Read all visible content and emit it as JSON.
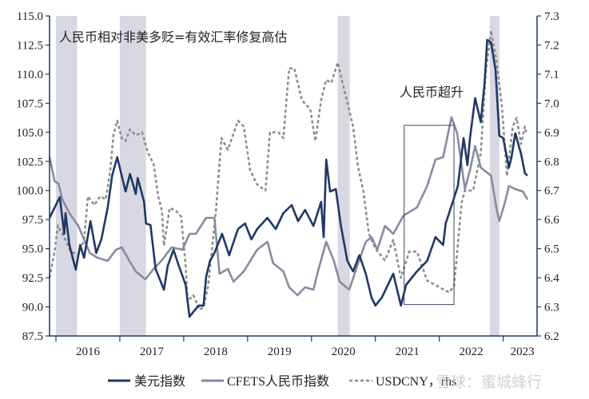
{
  "chart_data": {
    "type": "line",
    "title": "",
    "annotation_top": "人民币相对非美多贬=有效汇率修复高估",
    "annotation_box_label": "人民币超升",
    "annotation_box": {
      "x_range": [
        2021.45,
        2022.23
      ],
      "y_range": [
        90.2,
        105.6
      ]
    },
    "x_ticks": [
      "2016",
      "2017",
      "2018",
      "2019",
      "2020",
      "2021",
      "2022",
      "2023"
    ],
    "x_range": [
      2015.9,
      2023.53
    ],
    "y_left": {
      "ticks": [
        "87.5",
        "90.0",
        "92.5",
        "95.0",
        "97.5",
        "100.0",
        "102.5",
        "105.0",
        "107.5",
        "110.0",
        "112.5",
        "115.0"
      ],
      "range": [
        87.5,
        115.0
      ]
    },
    "y_right": {
      "ticks": [
        "6.2",
        "6.3",
        "6.4",
        "6.5",
        "6.6",
        "6.7",
        "6.8",
        "6.9",
        "7.0",
        "7.1",
        "7.2",
        "7.3"
      ],
      "range": [
        6.2,
        7.3
      ]
    },
    "shaded_periods": [
      [
        2016.0,
        2016.33
      ],
      [
        2017.0,
        2017.41
      ],
      [
        2020.41,
        2020.6
      ],
      [
        2022.79,
        2022.94
      ]
    ],
    "grid": false,
    "legend_position": "bottom",
    "series": [
      {
        "name": "美元指数",
        "axis": "left",
        "color": "#1f3864",
        "style": "solid",
        "points": [
          [
            2015.9,
            97.65
          ],
          [
            2016.06,
            99.43
          ],
          [
            2016.13,
            96.28
          ],
          [
            2016.15,
            98.06
          ],
          [
            2016.21,
            95.32
          ],
          [
            2016.31,
            93.19
          ],
          [
            2016.38,
            95.32
          ],
          [
            2016.44,
            94.22
          ],
          [
            2016.54,
            97.37
          ],
          [
            2016.63,
            94.63
          ],
          [
            2016.71,
            95.8
          ],
          [
            2016.81,
            98.54
          ],
          [
            2016.88,
            101.28
          ],
          [
            2016.96,
            102.86
          ],
          [
            2017.09,
            99.91
          ],
          [
            2017.16,
            101.42
          ],
          [
            2017.25,
            99.71
          ],
          [
            2017.28,
            101.08
          ],
          [
            2017.38,
            99.02
          ],
          [
            2017.41,
            97.17
          ],
          [
            2017.48,
            97.03
          ],
          [
            2017.56,
            93.26
          ],
          [
            2017.69,
            91.48
          ],
          [
            2017.75,
            93.53
          ],
          [
            2017.84,
            94.91
          ],
          [
            2017.91,
            93.74
          ],
          [
            2018.03,
            91.89
          ],
          [
            2018.09,
            89.15
          ],
          [
            2018.23,
            90.11
          ],
          [
            2018.31,
            90.11
          ],
          [
            2018.35,
            92.57
          ],
          [
            2018.41,
            93.95
          ],
          [
            2018.48,
            94.63
          ],
          [
            2018.6,
            96.28
          ],
          [
            2018.71,
            94.43
          ],
          [
            2018.85,
            96.69
          ],
          [
            2018.96,
            97.17
          ],
          [
            2019.06,
            95.8
          ],
          [
            2019.15,
            96.69
          ],
          [
            2019.31,
            97.65
          ],
          [
            2019.44,
            96.69
          ],
          [
            2019.56,
            98.06
          ],
          [
            2019.69,
            98.75
          ],
          [
            2019.79,
            97.37
          ],
          [
            2019.9,
            98.33
          ],
          [
            2020.03,
            96.96
          ],
          [
            2020.15,
            99.02
          ],
          [
            2020.19,
            96.0
          ],
          [
            2020.23,
            102.66
          ],
          [
            2020.29,
            99.91
          ],
          [
            2020.38,
            100.12
          ],
          [
            2020.46,
            96.96
          ],
          [
            2020.56,
            93.95
          ],
          [
            2020.65,
            93.05
          ],
          [
            2020.75,
            94.43
          ],
          [
            2020.85,
            92.85
          ],
          [
            2020.94,
            90.79
          ],
          [
            2021.0,
            90.11
          ],
          [
            2021.1,
            90.79
          ],
          [
            2021.28,
            92.85
          ],
          [
            2021.4,
            90.11
          ],
          [
            2021.48,
            91.89
          ],
          [
            2021.65,
            93.05
          ],
          [
            2021.81,
            93.95
          ],
          [
            2021.94,
            96.0
          ],
          [
            2022.06,
            95.32
          ],
          [
            2022.1,
            97.17
          ],
          [
            2022.21,
            99.02
          ],
          [
            2022.29,
            100.39
          ],
          [
            2022.38,
            104.51
          ],
          [
            2022.44,
            102.18
          ],
          [
            2022.48,
            104.51
          ],
          [
            2022.56,
            107.94
          ],
          [
            2022.65,
            105.88
          ],
          [
            2022.71,
            109.31
          ],
          [
            2022.75,
            112.94
          ],
          [
            2022.81,
            112.74
          ],
          [
            2022.88,
            110.41
          ],
          [
            2022.94,
            104.71
          ],
          [
            2023.0,
            104.51
          ],
          [
            2023.09,
            101.97
          ],
          [
            2023.13,
            102.86
          ],
          [
            2023.19,
            104.92
          ],
          [
            2023.28,
            103.14
          ],
          [
            2023.34,
            101.49
          ],
          [
            2023.38,
            101.28
          ]
        ]
      },
      {
        "name": "CFETS人民币指数",
        "axis": "left",
        "color": "#8b8aa0",
        "style": "solid",
        "points": [
          [
            2015.9,
            102.86
          ],
          [
            2015.98,
            100.8
          ],
          [
            2016.04,
            100.6
          ],
          [
            2016.1,
            99.23
          ],
          [
            2016.21,
            98.06
          ],
          [
            2016.35,
            96.96
          ],
          [
            2016.44,
            95.8
          ],
          [
            2016.53,
            94.63
          ],
          [
            2016.65,
            94.22
          ],
          [
            2016.81,
            93.95
          ],
          [
            2016.94,
            94.91
          ],
          [
            2017.03,
            95.11
          ],
          [
            2017.15,
            93.95
          ],
          [
            2017.25,
            93.05
          ],
          [
            2017.4,
            92.37
          ],
          [
            2017.53,
            93.26
          ],
          [
            2017.65,
            93.95
          ],
          [
            2017.81,
            95.11
          ],
          [
            2017.98,
            94.91
          ],
          [
            2018.09,
            96.28
          ],
          [
            2018.19,
            96.28
          ],
          [
            2018.35,
            97.65
          ],
          [
            2018.48,
            97.65
          ],
          [
            2018.56,
            92.85
          ],
          [
            2018.69,
            93.26
          ],
          [
            2018.78,
            92.16
          ],
          [
            2018.94,
            93.05
          ],
          [
            2019.15,
            94.91
          ],
          [
            2019.31,
            95.59
          ],
          [
            2019.4,
            93.74
          ],
          [
            2019.56,
            93.05
          ],
          [
            2019.65,
            91.68
          ],
          [
            2019.78,
            91.0
          ],
          [
            2019.9,
            91.68
          ],
          [
            2020.03,
            91.48
          ],
          [
            2020.1,
            93.05
          ],
          [
            2020.23,
            95.59
          ],
          [
            2020.35,
            93.95
          ],
          [
            2020.44,
            92.16
          ],
          [
            2020.59,
            91.48
          ],
          [
            2020.73,
            93.74
          ],
          [
            2020.85,
            95.59
          ],
          [
            2020.94,
            96.0
          ],
          [
            2021.03,
            94.91
          ],
          [
            2021.15,
            96.96
          ],
          [
            2021.28,
            96.28
          ],
          [
            2021.44,
            97.85
          ],
          [
            2021.65,
            98.54
          ],
          [
            2021.81,
            100.39
          ],
          [
            2021.94,
            102.66
          ],
          [
            2022.06,
            102.86
          ],
          [
            2022.19,
            106.29
          ],
          [
            2022.28,
            104.92
          ],
          [
            2022.4,
            100.12
          ],
          [
            2022.48,
            101.76
          ],
          [
            2022.56,
            103.82
          ],
          [
            2022.65,
            101.97
          ],
          [
            2022.81,
            101.28
          ],
          [
            2022.9,
            98.33
          ],
          [
            2022.94,
            97.37
          ],
          [
            2023.03,
            99.02
          ],
          [
            2023.09,
            100.39
          ],
          [
            2023.19,
            100.12
          ],
          [
            2023.31,
            99.91
          ],
          [
            2023.38,
            99.23
          ]
        ]
      },
      {
        "name": "USDCNY，rhs",
        "axis": "right",
        "color": "#8c8c8c",
        "style": "dashed",
        "points": [
          [
            2015.9,
            6.4
          ],
          [
            2015.98,
            6.49
          ],
          [
            2016.03,
            6.58
          ],
          [
            2016.15,
            6.53
          ],
          [
            2016.23,
            6.49
          ],
          [
            2016.35,
            6.48
          ],
          [
            2016.44,
            6.53
          ],
          [
            2016.5,
            6.68
          ],
          [
            2016.6,
            6.65
          ],
          [
            2016.69,
            6.68
          ],
          [
            2016.78,
            6.67
          ],
          [
            2016.85,
            6.77
          ],
          [
            2016.9,
            6.89
          ],
          [
            2016.96,
            6.94
          ],
          [
            2017.03,
            6.88
          ],
          [
            2017.09,
            6.87
          ],
          [
            2017.16,
            6.91
          ],
          [
            2017.25,
            6.89
          ],
          [
            2017.35,
            6.9
          ],
          [
            2017.44,
            6.83
          ],
          [
            2017.53,
            6.79
          ],
          [
            2017.6,
            6.68
          ],
          [
            2017.66,
            6.63
          ],
          [
            2017.69,
            6.51
          ],
          [
            2017.78,
            6.64
          ],
          [
            2017.88,
            6.63
          ],
          [
            2017.96,
            6.61
          ],
          [
            2018.03,
            6.44
          ],
          [
            2018.06,
            6.32
          ],
          [
            2018.15,
            6.34
          ],
          [
            2018.25,
            6.29
          ],
          [
            2018.31,
            6.3
          ],
          [
            2018.38,
            6.37
          ],
          [
            2018.4,
            6.41
          ],
          [
            2018.5,
            6.62
          ],
          [
            2018.59,
            6.88
          ],
          [
            2018.69,
            6.84
          ],
          [
            2018.85,
            6.94
          ],
          [
            2018.94,
            6.92
          ],
          [
            2019.04,
            6.77
          ],
          [
            2019.15,
            6.72
          ],
          [
            2019.28,
            6.7
          ],
          [
            2019.35,
            6.9
          ],
          [
            2019.48,
            6.9
          ],
          [
            2019.56,
            6.88
          ],
          [
            2019.65,
            7.12
          ],
          [
            2019.73,
            7.12
          ],
          [
            2019.85,
            7.01
          ],
          [
            2019.98,
            6.98
          ],
          [
            2020.06,
            6.87
          ],
          [
            2020.15,
            7.01
          ],
          [
            2020.23,
            7.08
          ],
          [
            2020.31,
            7.07
          ],
          [
            2020.41,
            7.14
          ],
          [
            2020.53,
            7.03
          ],
          [
            2020.65,
            6.92
          ],
          [
            2020.73,
            6.78
          ],
          [
            2020.81,
            6.7
          ],
          [
            2020.9,
            6.55
          ],
          [
            2021.0,
            6.5
          ],
          [
            2021.15,
            6.46
          ],
          [
            2021.28,
            6.53
          ],
          [
            2021.4,
            6.4
          ],
          [
            2021.53,
            6.49
          ],
          [
            2021.65,
            6.49
          ],
          [
            2021.81,
            6.39
          ],
          [
            2021.98,
            6.37
          ],
          [
            2022.15,
            6.35
          ],
          [
            2022.23,
            6.37
          ],
          [
            2022.35,
            6.66
          ],
          [
            2022.4,
            6.7
          ],
          [
            2022.53,
            6.7
          ],
          [
            2022.65,
            6.83
          ],
          [
            2022.73,
            7.11
          ],
          [
            2022.81,
            7.25
          ],
          [
            2022.9,
            7.14
          ],
          [
            2022.98,
            6.99
          ],
          [
            2023.06,
            6.75
          ],
          [
            2023.15,
            6.92
          ],
          [
            2023.21,
            6.95
          ],
          [
            2023.28,
            6.86
          ],
          [
            2023.34,
            6.92
          ],
          [
            2023.36,
            6.9
          ]
        ]
      }
    ]
  },
  "watermark": "雪球：蜜城蜂行",
  "colors": {
    "band": "#d8d8e2",
    "axis": "#1f3864"
  }
}
